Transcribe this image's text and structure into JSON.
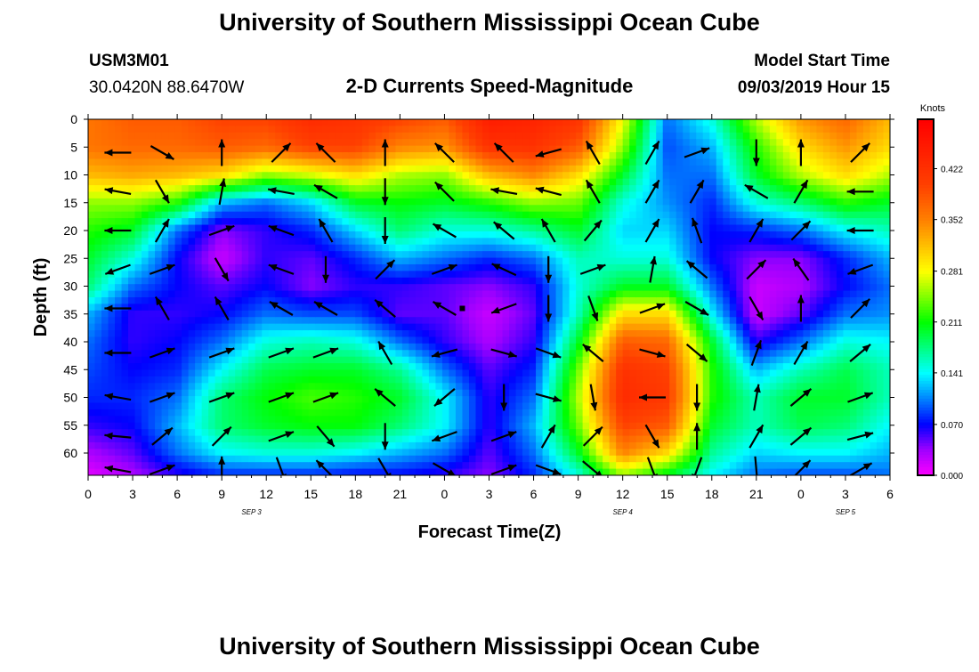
{
  "header": {
    "title": "University of Southern Mississippi Ocean Cube",
    "station_id": "USM3M01",
    "station_coords": "30.0420N 88.6470W",
    "subtitle": "2-D Currents Speed-Magnitude",
    "model_label": "Model Start Time",
    "model_time": "09/03/2019 Hour 15"
  },
  "footer": {
    "title": "University of Southern Mississippi Ocean Cube"
  },
  "chart_data": {
    "type": "heatmap",
    "title": "2-D Currents Speed-Magnitude",
    "xlabel": "Forecast Time(Z)",
    "ylabel": "Depth (ft)",
    "x_tick_labels": [
      "0",
      "3",
      "6",
      "9",
      "12",
      "15",
      "18",
      "21",
      "0",
      "3",
      "6",
      "9",
      "12",
      "15",
      "18",
      "21",
      "0",
      "3",
      "6"
    ],
    "x_hours": [
      0,
      3,
      6,
      9,
      12,
      15,
      18,
      21,
      24,
      27,
      30,
      33,
      36,
      39,
      42,
      45,
      48,
      51,
      54
    ],
    "xlim": [
      0,
      54
    ],
    "date_labels": [
      {
        "text": "SEP 3",
        "hour": 11
      },
      {
        "text": "SEP 4",
        "hour": 36
      },
      {
        "text": "SEP 5",
        "hour": 51
      }
    ],
    "y_ticks": [
      0,
      5,
      10,
      15,
      20,
      25,
      30,
      35,
      40,
      45,
      50,
      55,
      60
    ],
    "ylim": [
      0,
      64
    ],
    "y_inverted": true,
    "colorbar": {
      "label": "Knots",
      "ticks": [
        0.0,
        0.07,
        0.141,
        0.211,
        0.281,
        0.352,
        0.422
      ],
      "tick_labels": [
        "0.000",
        "0.070",
        "0.141",
        "0.211",
        "0.281",
        "0.352",
        "0.422"
      ],
      "range": [
        0,
        0.49
      ],
      "stops": [
        {
          "v": 0.0,
          "color": "#ff00ff"
        },
        {
          "v": 0.035,
          "color": "#a000ff"
        },
        {
          "v": 0.07,
          "color": "#0000ff"
        },
        {
          "v": 0.105,
          "color": "#0080ff"
        },
        {
          "v": 0.141,
          "color": "#00ffff"
        },
        {
          "v": 0.176,
          "color": "#00ff80"
        },
        {
          "v": 0.211,
          "color": "#00ff00"
        },
        {
          "v": 0.246,
          "color": "#80ff00"
        },
        {
          "v": 0.281,
          "color": "#ffff00"
        },
        {
          "v": 0.316,
          "color": "#ffc000"
        },
        {
          "v": 0.352,
          "color": "#ff8000"
        },
        {
          "v": 0.4,
          "color": "#ff4000"
        },
        {
          "v": 0.49,
          "color": "#ff0000"
        }
      ]
    },
    "speed_columns": [
      {
        "hour": 0,
        "speeds": [
          0.36,
          0.36,
          0.32,
          0.25,
          0.22,
          0.2,
          0.18,
          0.12,
          0.1,
          0.09,
          0.08,
          0.06,
          0.03,
          0.01
        ]
      },
      {
        "hour": 3,
        "speeds": [
          0.38,
          0.37,
          0.33,
          0.25,
          0.2,
          0.15,
          0.1,
          0.06,
          0.06,
          0.07,
          0.08,
          0.07,
          0.05,
          0.03
        ]
      },
      {
        "hour": 6,
        "speeds": [
          0.38,
          0.37,
          0.32,
          0.22,
          0.1,
          0.07,
          0.07,
          0.06,
          0.07,
          0.08,
          0.1,
          0.12,
          0.1,
          0.06
        ]
      },
      {
        "hour": 9,
        "speeds": [
          0.4,
          0.38,
          0.3,
          0.12,
          0.04,
          0.02,
          0.05,
          0.07,
          0.1,
          0.14,
          0.18,
          0.18,
          0.14,
          0.08
        ]
      },
      {
        "hour": 12,
        "speeds": [
          0.4,
          0.37,
          0.25,
          0.1,
          0.06,
          0.06,
          0.07,
          0.1,
          0.15,
          0.19,
          0.21,
          0.2,
          0.15,
          0.08
        ]
      },
      {
        "hour": 15,
        "speeds": [
          0.43,
          0.4,
          0.27,
          0.13,
          0.08,
          0.05,
          0.04,
          0.09,
          0.16,
          0.2,
          0.23,
          0.21,
          0.15,
          0.08
        ]
      },
      {
        "hour": 18,
        "speeds": [
          0.42,
          0.4,
          0.3,
          0.2,
          0.13,
          0.08,
          0.06,
          0.09,
          0.15,
          0.2,
          0.22,
          0.21,
          0.14,
          0.07
        ]
      },
      {
        "hour": 21,
        "speeds": [
          0.4,
          0.35,
          0.26,
          0.21,
          0.18,
          0.12,
          0.06,
          0.05,
          0.1,
          0.17,
          0.2,
          0.18,
          0.12,
          0.07
        ]
      },
      {
        "hour": 24,
        "speeds": [
          0.38,
          0.34,
          0.25,
          0.2,
          0.15,
          0.1,
          0.05,
          0.05,
          0.06,
          0.1,
          0.14,
          0.14,
          0.1,
          0.06
        ]
      },
      {
        "hour": 27,
        "speeds": [
          0.45,
          0.42,
          0.32,
          0.22,
          0.15,
          0.08,
          0.04,
          0.02,
          0.03,
          0.05,
          0.06,
          0.06,
          0.05,
          0.04
        ]
      },
      {
        "hour": 30,
        "speeds": [
          0.44,
          0.42,
          0.35,
          0.25,
          0.17,
          0.1,
          0.06,
          0.05,
          0.06,
          0.08,
          0.1,
          0.12,
          0.1,
          0.08
        ]
      },
      {
        "hour": 33,
        "speeds": [
          0.42,
          0.38,
          0.3,
          0.24,
          0.2,
          0.16,
          0.15,
          0.16,
          0.2,
          0.24,
          0.26,
          0.24,
          0.2,
          0.15
        ]
      },
      {
        "hour": 36,
        "speeds": [
          0.28,
          0.25,
          0.2,
          0.15,
          0.13,
          0.15,
          0.2,
          0.3,
          0.38,
          0.42,
          0.43,
          0.4,
          0.35,
          0.25
        ]
      },
      {
        "hour": 39,
        "speeds": [
          0.1,
          0.09,
          0.1,
          0.11,
          0.13,
          0.15,
          0.2,
          0.3,
          0.37,
          0.4,
          0.41,
          0.38,
          0.3,
          0.2
        ]
      },
      {
        "hour": 42,
        "speeds": [
          0.15,
          0.12,
          0.1,
          0.08,
          0.07,
          0.07,
          0.1,
          0.14,
          0.2,
          0.22,
          0.22,
          0.2,
          0.17,
          0.14
        ]
      },
      {
        "hour": 45,
        "speeds": [
          0.26,
          0.22,
          0.2,
          0.15,
          0.08,
          0.04,
          0.02,
          0.02,
          0.06,
          0.12,
          0.16,
          0.16,
          0.13,
          0.1
        ]
      },
      {
        "hour": 48,
        "speeds": [
          0.34,
          0.3,
          0.26,
          0.18,
          0.1,
          0.04,
          0.03,
          0.05,
          0.1,
          0.16,
          0.2,
          0.19,
          0.14,
          0.09
        ]
      },
      {
        "hour": 51,
        "speeds": [
          0.37,
          0.34,
          0.3,
          0.22,
          0.14,
          0.08,
          0.07,
          0.1,
          0.15,
          0.19,
          0.2,
          0.18,
          0.14,
          0.09
        ]
      },
      {
        "hour": 54,
        "speeds": [
          0.32,
          0.3,
          0.26,
          0.2,
          0.16,
          0.12,
          0.1,
          0.11,
          0.14,
          0.16,
          0.16,
          0.14,
          0.12,
          0.1
        ]
      }
    ],
    "speed_depths": [
      0,
      5,
      10,
      15,
      20,
      25,
      30,
      35,
      40,
      45,
      50,
      55,
      60,
      64
    ],
    "vector_rows_depth": [
      6,
      13,
      20,
      27,
      34,
      42,
      50,
      57,
      63
    ],
    "vector_cols_hour": [
      2,
      5,
      9,
      13,
      16,
      20,
      24,
      28,
      31,
      34,
      38,
      41,
      45,
      48,
      52
    ],
    "vectors": [
      [
        180,
        330,
        90,
        45,
        135,
        90,
        135,
        135,
        195,
        120,
        60,
        20,
        270,
        90,
        45
      ],
      [
        170,
        300,
        80,
        170,
        150,
        270,
        135,
        170,
        165,
        120,
        60,
        60,
        150,
        60,
        180
      ],
      [
        180,
        60,
        20,
        160,
        120,
        270,
        150,
        140,
        120,
        50,
        60,
        110,
        60,
        45,
        180
      ],
      [
        200,
        20,
        300,
        160,
        270,
        45,
        20,
        155,
        270,
        20,
        80,
        140,
        45,
        125,
        200
      ],
      [
        180,
        120,
        120,
        150,
        150,
        140,
        150,
        200,
        270,
        290,
        20,
        330,
        300,
        90,
        45
      ],
      [
        180,
        20,
        20,
        20,
        20,
        120,
        195,
        345,
        340,
        140,
        345,
        320,
        70,
        60,
        40
      ],
      [
        170,
        20,
        20,
        20,
        20,
        140,
        220,
        270,
        345,
        280,
        180,
        270,
        80,
        40,
        20
      ],
      [
        175,
        40,
        45,
        20,
        310,
        270,
        200,
        20,
        60,
        45,
        300,
        90,
        60,
        40,
        15
      ],
      [
        170,
        20,
        90,
        290,
        135,
        300,
        330,
        20,
        340,
        320,
        290,
        250,
        275,
        45,
        30
      ]
    ]
  }
}
